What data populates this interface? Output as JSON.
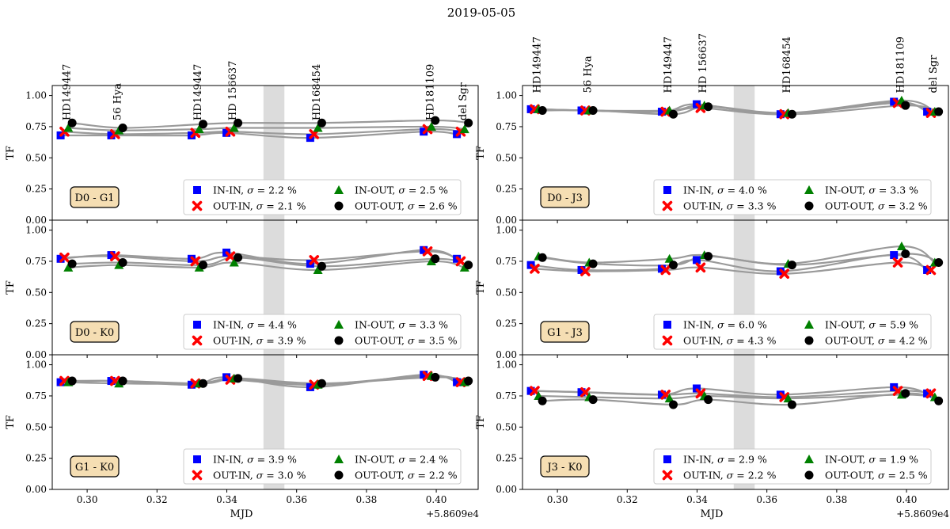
{
  "title": "2019-05-05",
  "x_offset_label": "+5.8609e4",
  "xlabel": "MJD",
  "ylabel": "TF",
  "xticks": [
    "0.30",
    "0.32",
    "0.34",
    "0.36",
    "0.38",
    "0.40"
  ],
  "yticks": [
    "0.00",
    "0.25",
    "0.50",
    "0.75",
    "1.00"
  ],
  "stars": [
    {
      "name": "HD149447",
      "mjd": 0.294
    },
    {
      "name": "56 Hya",
      "mjd": 0.3085
    },
    {
      "name": "HD149447",
      "mjd": 0.3315
    },
    {
      "name": "HD 156637",
      "mjd": 0.3415
    },
    {
      "name": "HD168454",
      "mjd": 0.3655
    },
    {
      "name": "HD181109",
      "mjd": 0.398
    },
    {
      "name": "del Sgr",
      "mjd": 0.4075
    }
  ],
  "legend_series": [
    {
      "name": "IN-IN",
      "color": "#0000ff",
      "marker": "square"
    },
    {
      "name": "OUT-IN",
      "color": "#ff0000",
      "marker": "x"
    },
    {
      "name": "IN-OUT",
      "color": "#008000",
      "marker": "triangle"
    },
    {
      "name": "OUT-OUT",
      "color": "#000000",
      "marker": "circle"
    }
  ],
  "chart_data": [
    {
      "type": "scatter",
      "baseline": "D0 - G1",
      "col": 0,
      "row": 0,
      "xlim": [
        0.29,
        0.412
      ],
      "ylim": [
        0,
        1.08
      ],
      "shade": [
        0.3505,
        0.3565
      ],
      "sigma": [
        "2.2",
        "2.1",
        "2.5",
        "2.6"
      ],
      "series": [
        {
          "name": "IN-IN",
          "values": [
            0.68,
            0.68,
            0.68,
            0.7,
            0.66,
            0.71,
            0.69
          ]
        },
        {
          "name": "OUT-IN",
          "values": [
            0.71,
            0.69,
            0.7,
            0.71,
            0.69,
            0.73,
            0.71
          ]
        },
        {
          "name": "IN-OUT",
          "values": [
            0.74,
            0.72,
            0.73,
            0.74,
            0.74,
            0.75,
            0.73
          ]
        },
        {
          "name": "OUT-OUT",
          "values": [
            0.78,
            0.74,
            0.77,
            0.78,
            0.78,
            0.8,
            0.78
          ]
        }
      ]
    },
    {
      "type": "scatter",
      "baseline": "D0 - K0",
      "col": 0,
      "row": 1,
      "xlim": [
        0.29,
        0.412
      ],
      "ylim": [
        0,
        1.08
      ],
      "shade": [
        0.3505,
        0.3565
      ],
      "sigma": [
        "4.4",
        "3.9",
        "3.3",
        "3.5"
      ],
      "series": [
        {
          "name": "IN-IN",
          "values": [
            0.77,
            0.8,
            0.77,
            0.82,
            0.73,
            0.84,
            0.77
          ]
        },
        {
          "name": "OUT-IN",
          "values": [
            0.78,
            0.79,
            0.75,
            0.79,
            0.76,
            0.83,
            0.75
          ]
        },
        {
          "name": "IN-OUT",
          "values": [
            0.7,
            0.72,
            0.7,
            0.74,
            0.68,
            0.75,
            0.7
          ]
        },
        {
          "name": "OUT-OUT",
          "values": [
            0.73,
            0.74,
            0.72,
            0.78,
            0.71,
            0.77,
            0.72
          ]
        }
      ]
    },
    {
      "type": "scatter",
      "baseline": "G1 - K0",
      "col": 0,
      "row": 2,
      "xlim": [
        0.29,
        0.412
      ],
      "ylim": [
        0,
        1.08
      ],
      "shade": [
        0.3505,
        0.3565
      ],
      "sigma": [
        "3.9",
        "3.0",
        "2.4",
        "2.2"
      ],
      "series": [
        {
          "name": "IN-IN",
          "values": [
            0.86,
            0.87,
            0.84,
            0.9,
            0.82,
            0.92,
            0.86
          ]
        },
        {
          "name": "OUT-IN",
          "values": [
            0.87,
            0.87,
            0.85,
            0.88,
            0.84,
            0.91,
            0.86
          ]
        },
        {
          "name": "IN-OUT",
          "values": [
            0.86,
            0.85,
            0.85,
            0.89,
            0.84,
            0.91,
            0.86
          ]
        },
        {
          "name": "OUT-OUT",
          "values": [
            0.87,
            0.87,
            0.85,
            0.89,
            0.85,
            0.9,
            0.87
          ]
        }
      ]
    },
    {
      "type": "scatter",
      "baseline": "D0 - J3",
      "col": 1,
      "row": 0,
      "xlim": [
        0.29,
        0.412
      ],
      "ylim": [
        0,
        1.08
      ],
      "shade": [
        0.3505,
        0.3565
      ],
      "sigma": [
        "4.0",
        "3.3",
        "3.3",
        "3.2"
      ],
      "series": [
        {
          "name": "IN-IN",
          "values": [
            0.89,
            0.88,
            0.87,
            0.93,
            0.85,
            0.95,
            0.87
          ]
        },
        {
          "name": "OUT-IN",
          "values": [
            0.89,
            0.88,
            0.87,
            0.9,
            0.85,
            0.94,
            0.86
          ]
        },
        {
          "name": "IN-OUT",
          "values": [
            0.89,
            0.88,
            0.88,
            0.92,
            0.86,
            0.96,
            0.87
          ]
        },
        {
          "name": "OUT-OUT",
          "values": [
            0.88,
            0.88,
            0.85,
            0.91,
            0.85,
            0.92,
            0.87
          ]
        }
      ]
    },
    {
      "type": "scatter",
      "baseline": "G1 - J3",
      "col": 1,
      "row": 1,
      "xlim": [
        0.29,
        0.412
      ],
      "ylim": [
        0,
        1.08
      ],
      "shade": [
        0.3505,
        0.3565
      ],
      "sigma": [
        "6.0",
        "4.3",
        "5.9",
        "4.2"
      ],
      "series": [
        {
          "name": "IN-IN",
          "values": [
            0.72,
            0.68,
            0.69,
            0.76,
            0.67,
            0.8,
            0.68
          ]
        },
        {
          "name": "OUT-IN",
          "values": [
            0.69,
            0.67,
            0.68,
            0.7,
            0.65,
            0.74,
            0.68
          ]
        },
        {
          "name": "IN-OUT",
          "values": [
            0.79,
            0.74,
            0.77,
            0.8,
            0.73,
            0.87,
            0.74
          ]
        },
        {
          "name": "OUT-OUT",
          "values": [
            0.78,
            0.73,
            0.72,
            0.79,
            0.72,
            0.81,
            0.74
          ]
        }
      ]
    },
    {
      "type": "scatter",
      "baseline": "J3 - K0",
      "col": 1,
      "row": 2,
      "xlim": [
        0.29,
        0.412
      ],
      "ylim": [
        0,
        1.08
      ],
      "shade": [
        0.3505,
        0.3565
      ],
      "sigma": [
        "2.9",
        "2.2",
        "1.9",
        "2.5"
      ],
      "series": [
        {
          "name": "IN-IN",
          "values": [
            0.79,
            0.78,
            0.76,
            0.81,
            0.76,
            0.82,
            0.77
          ]
        },
        {
          "name": "OUT-IN",
          "values": [
            0.79,
            0.78,
            0.76,
            0.77,
            0.74,
            0.79,
            0.77
          ]
        },
        {
          "name": "IN-OUT",
          "values": [
            0.75,
            0.74,
            0.73,
            0.75,
            0.73,
            0.76,
            0.74
          ]
        },
        {
          "name": "OUT-OUT",
          "values": [
            0.71,
            0.72,
            0.68,
            0.72,
            0.68,
            0.77,
            0.71
          ]
        }
      ]
    }
  ]
}
